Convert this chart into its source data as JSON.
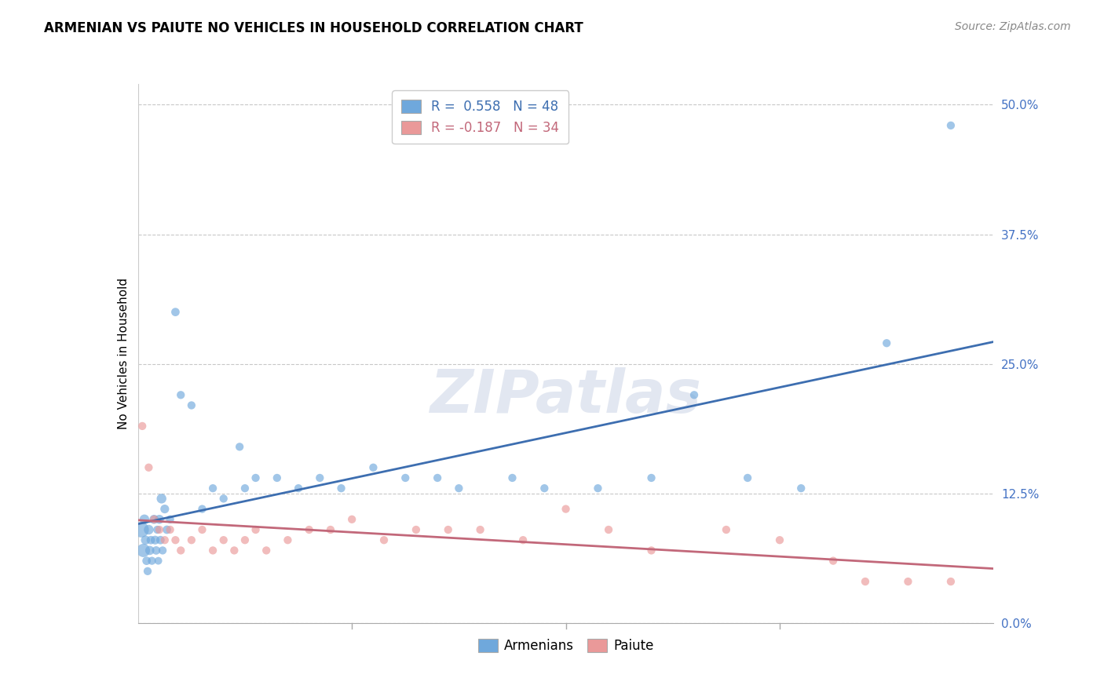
{
  "title": "ARMENIAN VS PAIUTE NO VEHICLES IN HOUSEHOLD CORRELATION CHART",
  "source": "Source: ZipAtlas.com",
  "ylabel": "No Vehicles in Household",
  "ytick_values": [
    0.0,
    12.5,
    25.0,
    37.5,
    50.0
  ],
  "xlim": [
    0.0,
    80.0
  ],
  "ylim": [
    0.0,
    52.0
  ],
  "legend_blue_r": "R =  0.558",
  "legend_blue_n": "N = 48",
  "legend_pink_r": "R = -0.187",
  "legend_pink_n": "N = 34",
  "blue_color": "#6fa8dc",
  "pink_color": "#ea9999",
  "blue_line_color": "#3d6eb0",
  "pink_line_color": "#c2687a",
  "background_color": "#ffffff",
  "grid_color": "#c8c8c8",
  "armenian_x": [
    0.3,
    0.5,
    0.6,
    0.7,
    0.8,
    0.9,
    1.0,
    1.1,
    1.2,
    1.3,
    1.5,
    1.6,
    1.7,
    1.8,
    1.9,
    2.0,
    2.1,
    2.2,
    2.3,
    2.5,
    2.7,
    3.0,
    3.5,
    4.0,
    5.0,
    6.0,
    7.0,
    8.0,
    9.5,
    10.0,
    11.0,
    13.0,
    15.0,
    17.0,
    19.0,
    22.0,
    25.0,
    28.0,
    30.0,
    35.0,
    38.0,
    43.0,
    48.0,
    52.0,
    57.0,
    62.0,
    70.0,
    76.0
  ],
  "armenian_y": [
    9.0,
    7.0,
    10.0,
    8.0,
    6.0,
    5.0,
    9.0,
    7.0,
    8.0,
    6.0,
    10.0,
    8.0,
    7.0,
    9.0,
    6.0,
    10.0,
    8.0,
    12.0,
    7.0,
    11.0,
    9.0,
    10.0,
    30.0,
    22.0,
    21.0,
    11.0,
    13.0,
    12.0,
    17.0,
    13.0,
    14.0,
    14.0,
    13.0,
    14.0,
    13.0,
    15.0,
    14.0,
    14.0,
    13.0,
    14.0,
    13.0,
    13.0,
    14.0,
    22.0,
    14.0,
    13.0,
    27.0,
    48.0
  ],
  "armenian_size": [
    200,
    150,
    80,
    70,
    60,
    55,
    80,
    70,
    60,
    55,
    70,
    65,
    60,
    55,
    50,
    70,
    60,
    80,
    55,
    65,
    60,
    55,
    60,
    55,
    55,
    55,
    55,
    55,
    55,
    55,
    55,
    55,
    55,
    55,
    55,
    55,
    55,
    55,
    55,
    55,
    55,
    55,
    55,
    55,
    55,
    55,
    55,
    55
  ],
  "paiute_x": [
    0.4,
    1.0,
    1.5,
    2.0,
    2.5,
    3.0,
    3.5,
    4.0,
    5.0,
    6.0,
    7.0,
    8.0,
    9.0,
    10.0,
    11.0,
    12.0,
    14.0,
    16.0,
    18.0,
    20.0,
    23.0,
    26.0,
    29.0,
    32.0,
    36.0,
    40.0,
    44.0,
    48.0,
    55.0,
    60.0,
    65.0,
    68.0,
    72.0,
    76.0
  ],
  "paiute_y": [
    19.0,
    15.0,
    10.0,
    9.0,
    8.0,
    9.0,
    8.0,
    7.0,
    8.0,
    9.0,
    7.0,
    8.0,
    7.0,
    8.0,
    9.0,
    7.0,
    8.0,
    9.0,
    9.0,
    10.0,
    8.0,
    9.0,
    9.0,
    9.0,
    8.0,
    11.0,
    9.0,
    7.0,
    9.0,
    8.0,
    6.0,
    4.0,
    4.0,
    4.0
  ],
  "paiute_size": [
    55,
    55,
    55,
    55,
    55,
    55,
    55,
    55,
    55,
    55,
    55,
    55,
    55,
    55,
    55,
    55,
    55,
    55,
    55,
    55,
    55,
    55,
    55,
    55,
    55,
    55,
    55,
    55,
    55,
    55,
    55,
    55,
    55,
    55
  ],
  "title_fontsize": 12,
  "source_fontsize": 10,
  "label_fontsize": 11,
  "tick_fontsize": 11,
  "legend_fontsize": 12,
  "watermark_text": "ZIPatlas",
  "watermark_color": "#d0d8e8",
  "watermark_fontsize": 55
}
